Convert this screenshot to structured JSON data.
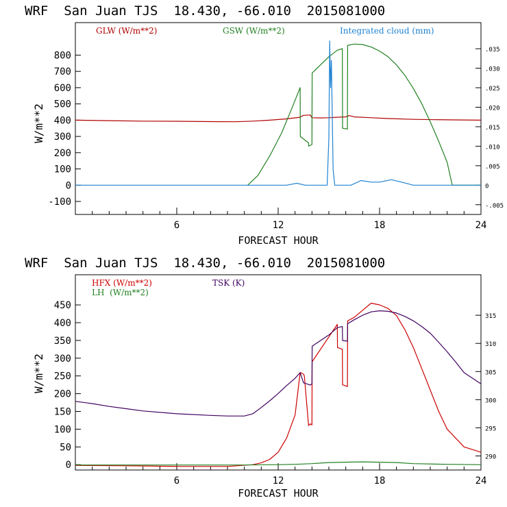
{
  "charts": [
    {
      "title": "WRF  San Juan TJS  18.430, -66.010  2015081000",
      "xlabel": "FORECAST HOUR",
      "ylabel": "W/m**2",
      "legend": [
        "GLW (W/m**2)",
        "GSW (W/m**2)",
        "Integrated cloud (mm)"
      ]
    },
    {
      "title": "WRF  San Juan TJS  18.430, -66.010  2015081000",
      "xlabel": "FORECAST HOUR",
      "ylabel": "W/m**2",
      "legend": [
        "HFX (W/m**2)",
        "LH  (W/m**2)",
        "TSK (K)"
      ]
    }
  ],
  "chart_data": [
    {
      "type": "line",
      "title": "WRF  San Juan TJS  18.430, -66.010  2015081000",
      "xlabel": "FORECAST HOUR",
      "ylabel": "W/m**2",
      "xlim": [
        0,
        24
      ],
      "ylim": [
        -180,
        1000
      ],
      "y2lim": [
        -0.0075,
        0.0417
      ],
      "x_ticks": [
        "6",
        "12",
        "18",
        "24"
      ],
      "x_tick_values": [
        6,
        12,
        18,
        24
      ],
      "y_ticks": [
        "-100",
        "0",
        "100",
        "200",
        "300",
        "400",
        "500",
        "600",
        "700",
        "800"
      ],
      "y_tick_values": [
        -100,
        0,
        100,
        200,
        300,
        400,
        500,
        600,
        700,
        800
      ],
      "y2_ticks": [
        "-.005",
        "0",
        ".005",
        ".010",
        ".015",
        ".020",
        ".025",
        ".030",
        ".035"
      ],
      "y2_tick_values": [
        -0.005,
        0,
        0.005,
        0.01,
        0.015,
        0.02,
        0.025,
        0.03,
        0.035
      ],
      "grid": false,
      "legend_position": "top",
      "series": [
        {
          "name": "GLW (W/m**2)",
          "color": "#b00000",
          "axis": "left",
          "x": [
            0,
            2,
            4,
            6,
            8,
            9.5,
            10.5,
            11.5,
            12.5,
            13.3,
            13.5,
            13.9,
            14,
            14.5,
            15,
            15.5,
            16,
            16.2,
            16.5,
            17.5,
            18.5,
            20,
            22,
            24
          ],
          "y": [
            400,
            397,
            394,
            393,
            391,
            390,
            394,
            400,
            408,
            418,
            430,
            432,
            415,
            414,
            415,
            418,
            420,
            428,
            420,
            415,
            410,
            405,
            402,
            400
          ]
        },
        {
          "name": "GSW (W/m**2)",
          "color": "#208020",
          "axis": "left",
          "x": [
            10.2,
            10.8,
            11.5,
            12.2,
            12.8,
            13.3,
            13.31,
            13.8,
            13.81,
            14,
            14.01,
            15,
            15.5,
            15.8,
            15.81,
            16.1,
            16.11,
            16.5,
            17,
            17.5,
            18,
            18.5,
            19,
            19.5,
            20,
            20.5,
            21,
            21.5,
            22,
            22.3,
            24
          ],
          "y": [
            0,
            60,
            180,
            320,
            470,
            600,
            300,
            260,
            240,
            250,
            690,
            790,
            830,
            840,
            350,
            345,
            860,
            868,
            865,
            850,
            825,
            790,
            740,
            675,
            595,
            500,
            390,
            270,
            140,
            0,
            0
          ]
        },
        {
          "name": "Integrated cloud (mm)",
          "color": "#1e82d2",
          "axis": "right",
          "x": [
            0,
            12.5,
            13.1,
            13.6,
            14.2,
            14.9,
            15.0,
            15.05,
            15.1,
            15.15,
            15.25,
            15.35,
            16.3,
            16.9,
            17.5,
            18,
            18.7,
            19.3,
            20,
            24
          ],
          "y": [
            0,
            0,
            0.0005,
            0,
            0,
            0,
            0.012,
            0.037,
            0.025,
            0.032,
            0.004,
            0,
            0,
            0.0012,
            0.0008,
            0.0008,
            0.0014,
            0.0008,
            0,
            0
          ]
        }
      ]
    },
    {
      "type": "line",
      "title": "WRF  San Juan TJS  18.430, -66.010  2015081000",
      "xlabel": "FORECAST HOUR",
      "ylabel": "W/m**2",
      "xlim": [
        0,
        24
      ],
      "ylim": [
        -15,
        535
      ],
      "y2lim": [
        287.5,
        322.2
      ],
      "x_ticks": [
        "6",
        "12",
        "18",
        "24"
      ],
      "x_tick_values": [
        6,
        12,
        18,
        24
      ],
      "y_ticks": [
        "0",
        "50",
        "100",
        "150",
        "200",
        "250",
        "300",
        "350",
        "400",
        "450"
      ],
      "y_tick_values": [
        0,
        50,
        100,
        150,
        200,
        250,
        300,
        350,
        400,
        450
      ],
      "y2_ticks": [
        "290",
        "295",
        "300",
        "305",
        "310",
        "315"
      ],
      "y2_tick_values": [
        290,
        295,
        300,
        305,
        310,
        315
      ],
      "grid": false,
      "legend_position": "top-left",
      "series": [
        {
          "name": "HFX (W/m**2)",
          "color": "#cc0000",
          "axis": "left",
          "x": [
            0,
            3,
            6,
            9,
            10.5,
            11,
            11.5,
            12,
            12.5,
            13,
            13.3,
            13.5,
            13.55,
            13.8,
            13.9,
            14,
            14.01,
            15,
            15.5,
            15.51,
            15.8,
            15.81,
            16.1,
            16.11,
            16.5,
            17,
            17.5,
            18,
            18.5,
            19,
            19.5,
            20,
            20.5,
            21,
            21.5,
            22,
            23,
            24
          ],
          "y": [
            -2,
            -3,
            -5,
            -5,
            0,
            5,
            15,
            35,
            75,
            140,
            260,
            255,
            250,
            110,
            115,
            112,
            290,
            360,
            395,
            330,
            325,
            225,
            220,
            405,
            415,
            435,
            455,
            450,
            440,
            420,
            380,
            330,
            270,
            210,
            150,
            100,
            50,
            35
          ]
        },
        {
          "name": "LH  (W/m**2)",
          "color": "#208020",
          "axis": "left",
          "x": [
            0,
            6,
            10,
            12,
            13,
            14,
            15,
            16,
            17,
            18,
            19,
            20,
            22,
            24
          ],
          "y": [
            -1,
            -1,
            -1,
            0,
            1,
            3,
            6,
            7,
            8,
            7,
            6,
            3,
            1,
            0
          ]
        },
        {
          "name": "TSK (K)",
          "color": "#400060",
          "axis": "right",
          "x": [
            0,
            1,
            2,
            3,
            4,
            6,
            8,
            9,
            10,
            10.5,
            11,
            11.5,
            12,
            12.5,
            13,
            13.3,
            13.5,
            13.8,
            13.9,
            14,
            14.01,
            15,
            15.5,
            15.8,
            15.81,
            16.1,
            16.11,
            16.5,
            17,
            17.5,
            18,
            18.5,
            19,
            19.5,
            20,
            20.5,
            21,
            21.5,
            22,
            22.5,
            23,
            24
          ],
          "y": [
            299.7,
            299.3,
            298.8,
            298.4,
            298.0,
            297.5,
            297.2,
            297.1,
            297.1,
            297.5,
            298.6,
            299.8,
            301.1,
            302.5,
            303.8,
            304.8,
            303.0,
            302.7,
            302.6,
            302.8,
            309.5,
            311.5,
            312.8,
            313.0,
            310.5,
            310.4,
            313.5,
            314.2,
            315.0,
            315.6,
            315.8,
            315.7,
            315.4,
            314.8,
            314.0,
            313.0,
            311.8,
            310.2,
            308.5,
            306.7,
            304.8,
            302.8
          ]
        }
      ]
    }
  ]
}
